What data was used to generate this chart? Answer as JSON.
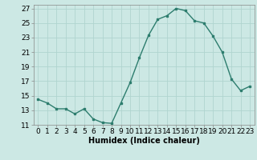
{
  "x": [
    0,
    1,
    2,
    3,
    4,
    5,
    6,
    7,
    8,
    9,
    10,
    11,
    12,
    13,
    14,
    15,
    16,
    17,
    18,
    19,
    20,
    21,
    22,
    23
  ],
  "y": [
    14.5,
    14.0,
    13.2,
    13.2,
    12.5,
    13.2,
    11.8,
    11.3,
    11.2,
    14.0,
    16.8,
    20.2,
    23.3,
    25.5,
    26.0,
    27.0,
    26.7,
    25.3,
    25.0,
    23.2,
    21.0,
    17.3,
    15.7,
    16.3
  ],
  "line_color": "#2d7d6e",
  "marker": "s",
  "marker_size": 2,
  "bg_color": "#cce8e4",
  "grid_color": "#b0d4cf",
  "xlabel": "Humidex (Indice chaleur)",
  "ylim": [
    11,
    27
  ],
  "xlim": [
    -0.5,
    23.5
  ],
  "yticks": [
    11,
    13,
    15,
    17,
    19,
    21,
    23,
    25,
    27
  ],
  "xticks": [
    0,
    1,
    2,
    3,
    4,
    5,
    6,
    7,
    8,
    9,
    10,
    11,
    12,
    13,
    14,
    15,
    16,
    17,
    18,
    19,
    20,
    21,
    22,
    23
  ],
  "xtick_labels": [
    "0",
    "1",
    "2",
    "3",
    "4",
    "5",
    "6",
    "7",
    "8",
    "9",
    "10",
    "11",
    "12",
    "13",
    "14",
    "15",
    "16",
    "17",
    "18",
    "19",
    "20",
    "21",
    "22",
    "23"
  ],
  "xlabel_fontsize": 7,
  "tick_fontsize": 6.5
}
